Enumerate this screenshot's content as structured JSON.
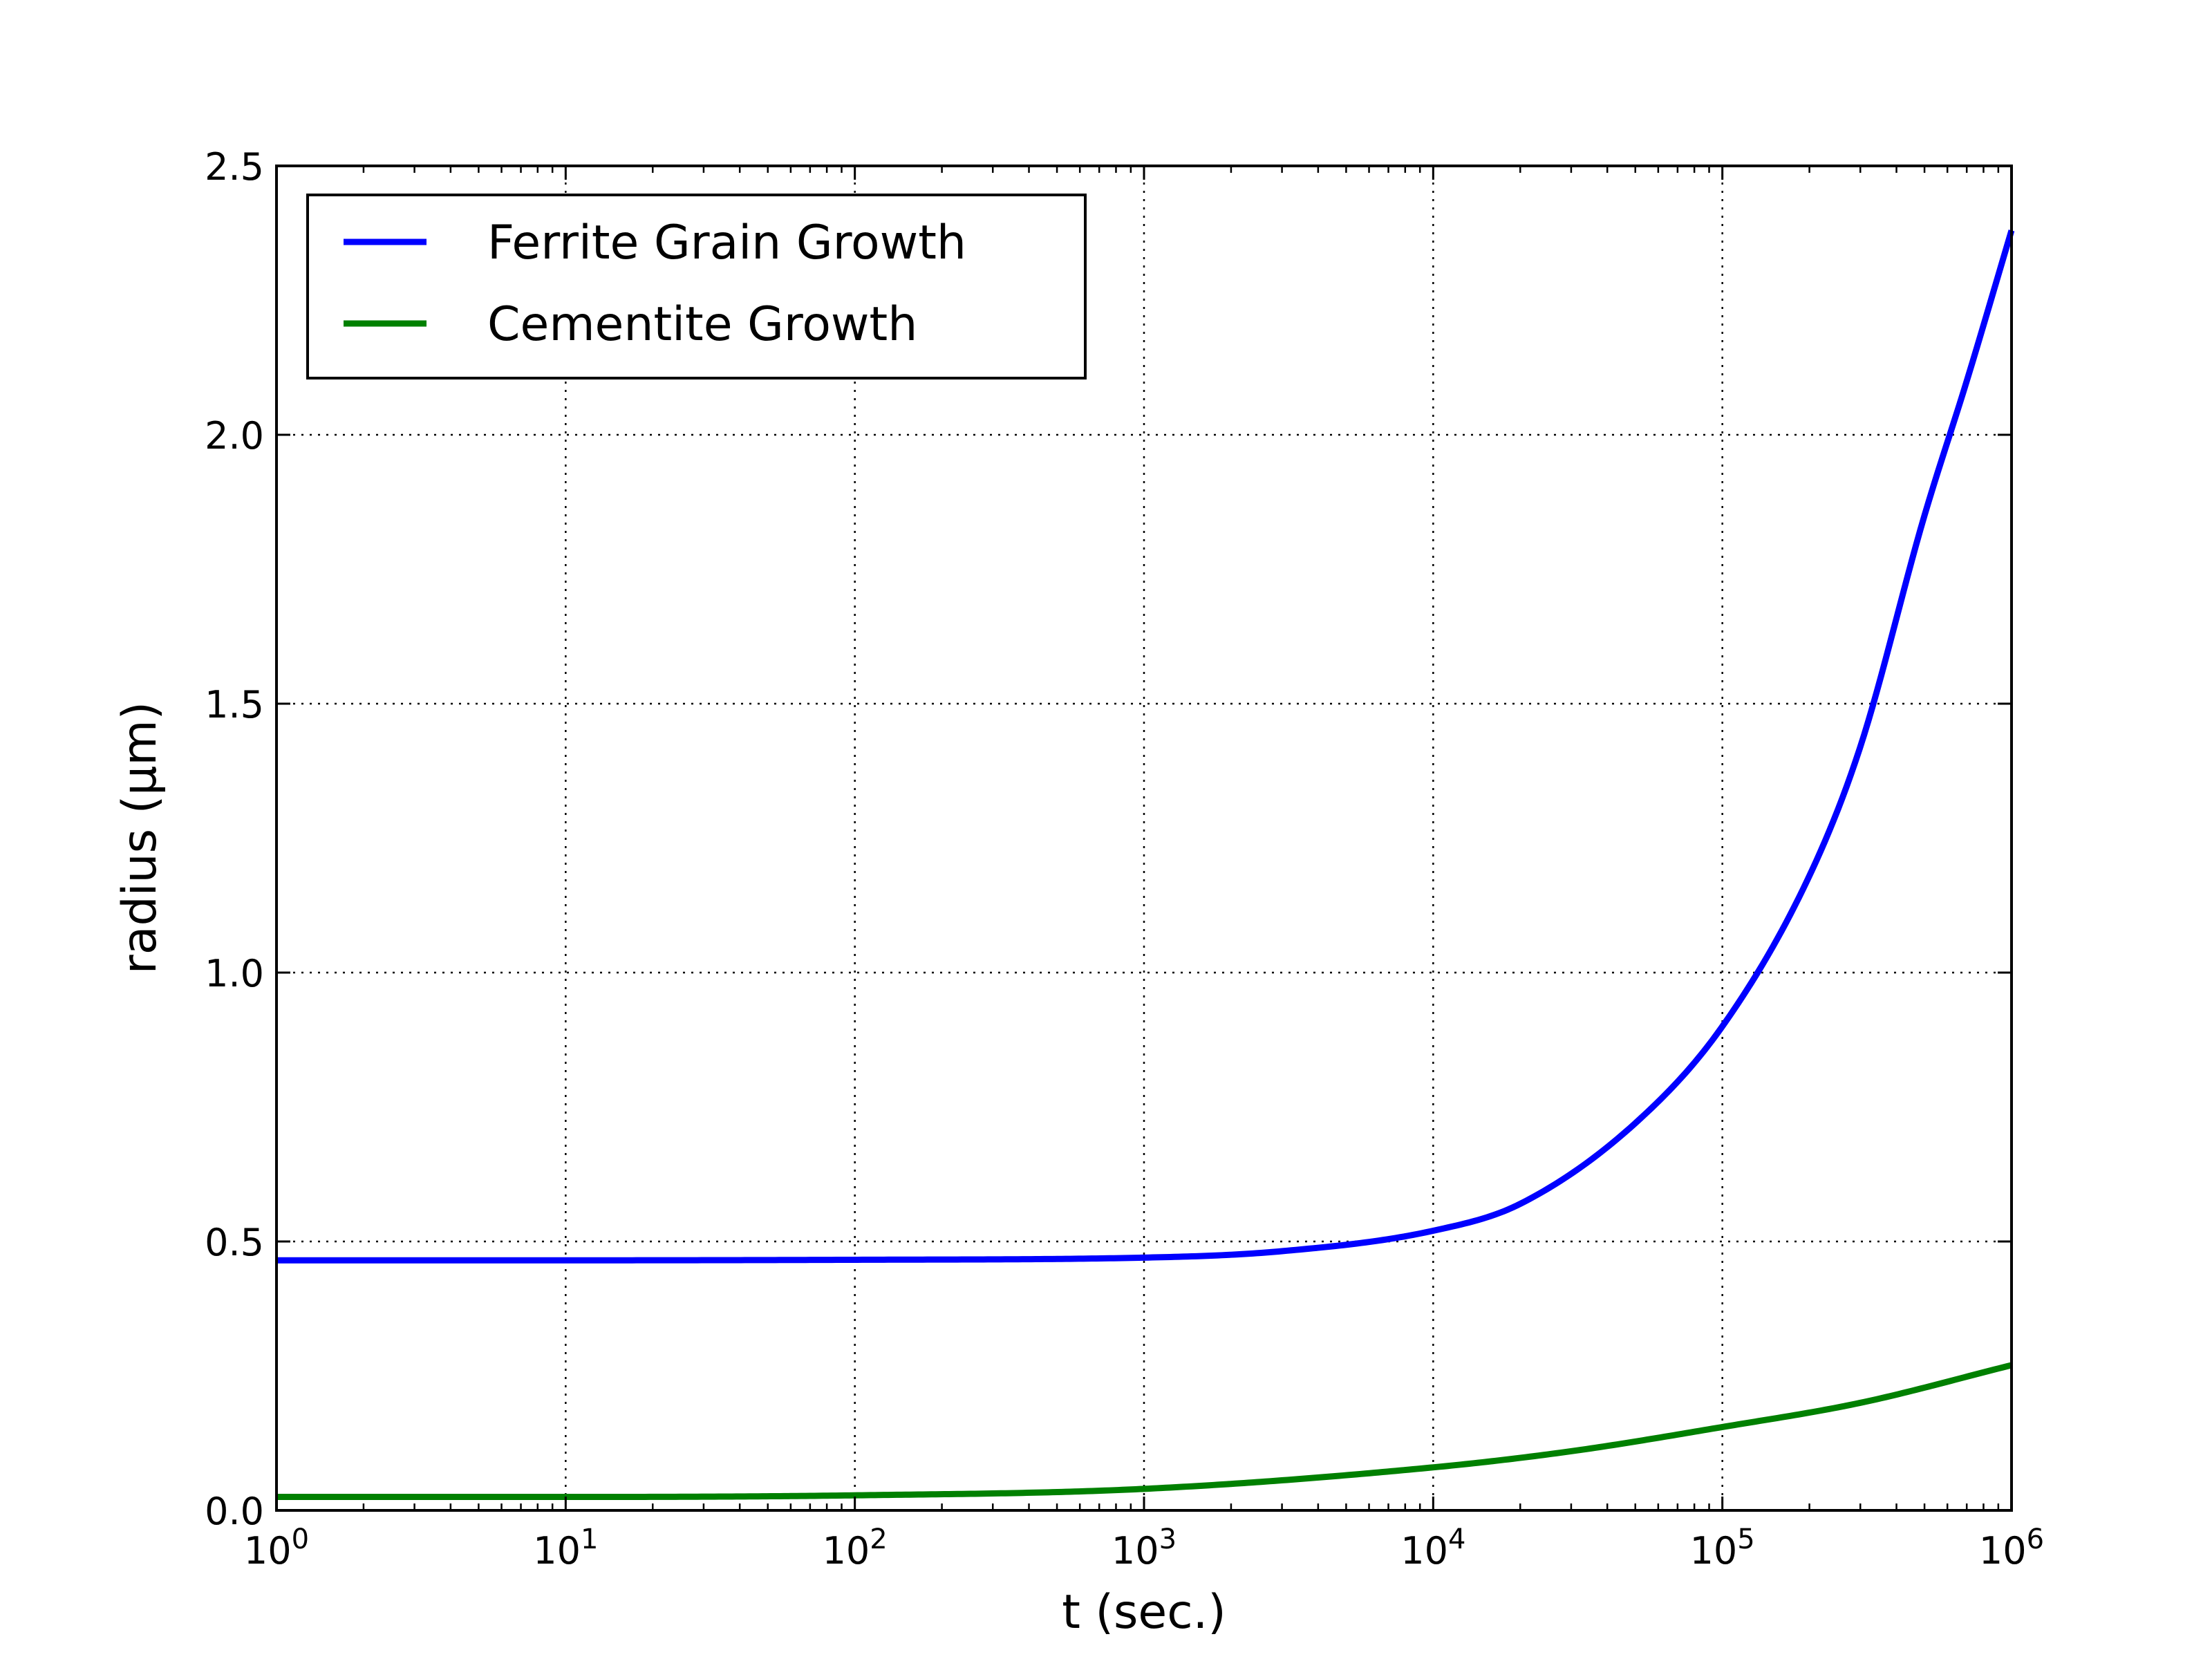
{
  "chart_data": {
    "type": "line",
    "xscale": "log",
    "xlim": [
      1,
      1000000
    ],
    "ylim": [
      0.0,
      2.5
    ],
    "xlabel": "t (sec.)",
    "ylabel": "radius (μm)",
    "grid": true,
    "legend_position": "top-left",
    "x_ticks": [
      {
        "base": "10",
        "exp": "0"
      },
      {
        "base": "10",
        "exp": "1"
      },
      {
        "base": "10",
        "exp": "2"
      },
      {
        "base": "10",
        "exp": "3"
      },
      {
        "base": "10",
        "exp": "4"
      },
      {
        "base": "10",
        "exp": "5"
      },
      {
        "base": "10",
        "exp": "6"
      }
    ],
    "y_ticks": [
      "0.0",
      "0.5",
      "1.0",
      "1.5",
      "2.0",
      "2.5"
    ],
    "series": [
      {
        "name": "Ferrite Grain Growth",
        "color": "#0000ff",
        "x": [
          1,
          10,
          100,
          1000,
          3000,
          10000,
          20000,
          50000,
          100000,
          200000,
          300000,
          500000,
          700000,
          1000000
        ],
        "y": [
          0.465,
          0.465,
          0.466,
          0.47,
          0.482,
          0.52,
          0.57,
          0.72,
          0.9,
          1.18,
          1.42,
          1.85,
          2.1,
          2.38
        ]
      },
      {
        "name": "Cementite Growth",
        "color": "#008000",
        "x": [
          1,
          10,
          100,
          1000,
          10000,
          30000,
          100000,
          300000,
          1000000
        ],
        "y": [
          0.025,
          0.025,
          0.028,
          0.04,
          0.08,
          0.11,
          0.155,
          0.2,
          0.27
        ]
      }
    ]
  }
}
